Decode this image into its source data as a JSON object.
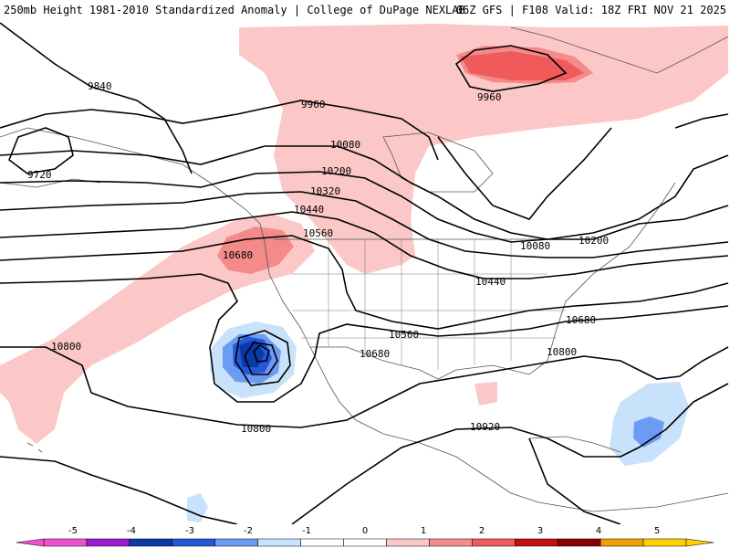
{
  "header": {
    "left_title": "250mb Height 1981-2010 Standardized Anomaly | College of DuPage NEXLAB",
    "right_title": "06Z GFS | F108 Valid: 18Z FRI NOV 21 2025"
  },
  "colors": {
    "pos1": "#fbc7c7",
    "pos2": "#f58a8a",
    "pos3": "#f05a5a",
    "neg1": "#c9e2fb",
    "neg2": "#6b9bf3",
    "neg3": "#2458d8",
    "neg4": "#0a3aa8",
    "contour": "#000000",
    "border": "#555555"
  },
  "contour_labels": [
    {
      "id": "c9840-a",
      "text": "9840"
    },
    {
      "id": "c9720",
      "text": "9720"
    },
    {
      "id": "c9960-a",
      "text": "9960"
    },
    {
      "id": "c9960-b",
      "text": "9960"
    },
    {
      "id": "c10080-a",
      "text": "10080"
    },
    {
      "id": "c10080-b",
      "text": "10080"
    },
    {
      "id": "c10200-a",
      "text": "10200"
    },
    {
      "id": "c10200-b",
      "text": "10200"
    },
    {
      "id": "c10320",
      "text": "10320"
    },
    {
      "id": "c10440-a",
      "text": "10440"
    },
    {
      "id": "c10440-b",
      "text": "10440"
    },
    {
      "id": "c10560-a",
      "text": "10560"
    },
    {
      "id": "c10560-b",
      "text": "10560"
    },
    {
      "id": "c10680-a",
      "text": "10680"
    },
    {
      "id": "c10680-b",
      "text": "10680"
    },
    {
      "id": "c10680-c",
      "text": "10680"
    },
    {
      "id": "c10800-a",
      "text": "10800"
    },
    {
      "id": "c10800-b",
      "text": "10800"
    },
    {
      "id": "c10800-c",
      "text": "10800"
    },
    {
      "id": "c10920",
      "text": "10920"
    }
  ],
  "colorbar": {
    "ticks": [
      "-5",
      "-4",
      "-3",
      "-2",
      "-1",
      "0",
      "1",
      "2",
      "3",
      "4",
      "5"
    ],
    "colors": [
      "#f04fcf",
      "#9b1bd6",
      "#0a3aa8",
      "#2458d8",
      "#6b9bf3",
      "#c9e2fb",
      "#ffffff",
      "#ffffff",
      "#fbc7c7",
      "#f58a8a",
      "#f05a5a",
      "#c01010",
      "#8a0000",
      "#f0a000",
      "#ffd000"
    ]
  }
}
